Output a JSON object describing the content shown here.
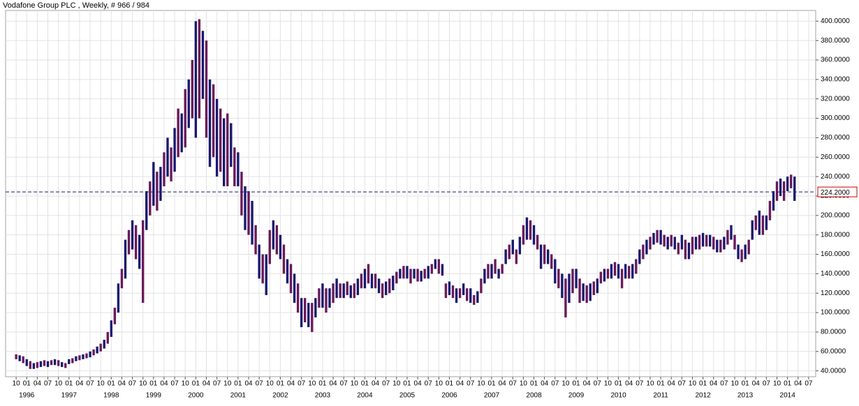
{
  "chart_data": {
    "type": "ohlc",
    "title": "Vodafone Group PLC , Weekly, # 966 / 984",
    "color": "#1a1a70",
    "grid": true,
    "x": [
      "1995-10",
      "1995-11",
      "1995-12",
      "1996-01",
      "1996-02",
      "1996-03",
      "1996-04",
      "1996-05",
      "1996-06",
      "1996-07",
      "1996-08",
      "1996-09",
      "1996-10",
      "1996-11",
      "1996-12",
      "1997-01",
      "1997-02",
      "1997-03",
      "1997-04",
      "1997-05",
      "1997-06",
      "1997-07",
      "1997-08",
      "1997-09",
      "1997-10",
      "1997-11",
      "1997-12",
      "1998-01",
      "1998-02",
      "1998-03",
      "1998-04",
      "1998-05",
      "1998-06",
      "1998-07",
      "1998-08",
      "1998-09",
      "1998-10",
      "1998-11",
      "1998-12",
      "1999-01",
      "1999-02",
      "1999-03",
      "1999-04",
      "1999-05",
      "1999-06",
      "1999-07",
      "1999-08",
      "1999-09",
      "1999-10",
      "1999-11",
      "1999-12",
      "2000-01",
      "2000-02",
      "2000-03",
      "2000-04",
      "2000-05",
      "2000-06",
      "2000-07",
      "2000-08",
      "2000-09",
      "2000-10",
      "2000-11",
      "2000-12",
      "2001-01",
      "2001-02",
      "2001-03",
      "2001-04",
      "2001-05",
      "2001-06",
      "2001-07",
      "2001-08",
      "2001-09",
      "2001-10",
      "2001-11",
      "2001-12",
      "2002-01",
      "2002-02",
      "2002-03",
      "2002-04",
      "2002-05",
      "2002-06",
      "2002-07",
      "2002-08",
      "2002-09",
      "2002-10",
      "2002-11",
      "2002-12",
      "2003-01",
      "2003-02",
      "2003-03",
      "2003-04",
      "2003-05",
      "2003-06",
      "2003-07",
      "2003-08",
      "2003-09",
      "2003-10",
      "2003-11",
      "2003-12",
      "2004-01",
      "2004-02",
      "2004-03",
      "2004-04",
      "2004-05",
      "2004-06",
      "2004-07",
      "2004-08",
      "2004-09",
      "2004-10",
      "2004-11",
      "2004-12",
      "2005-01",
      "2005-02",
      "2005-03",
      "2005-04",
      "2005-05",
      "2005-06",
      "2005-07",
      "2005-08",
      "2005-09",
      "2005-10",
      "2005-11",
      "2005-12",
      "2006-01",
      "2006-02",
      "2006-03",
      "2006-04",
      "2006-05",
      "2006-06",
      "2006-07",
      "2006-08",
      "2006-09",
      "2006-10",
      "2006-11",
      "2006-12",
      "2007-01",
      "2007-02",
      "2007-03",
      "2007-04",
      "2007-05",
      "2007-06",
      "2007-07",
      "2007-08",
      "2007-09",
      "2007-10",
      "2007-11",
      "2007-12",
      "2008-01",
      "2008-02",
      "2008-03",
      "2008-04",
      "2008-05",
      "2008-06",
      "2008-07",
      "2008-08",
      "2008-09",
      "2008-10",
      "2008-11",
      "2008-12",
      "2009-01",
      "2009-02",
      "2009-03",
      "2009-04",
      "2009-05",
      "2009-06",
      "2009-07",
      "2009-08",
      "2009-09",
      "2009-10",
      "2009-11",
      "2009-12",
      "2010-01",
      "2010-02",
      "2010-03",
      "2010-04",
      "2010-05",
      "2010-06",
      "2010-07",
      "2010-08",
      "2010-09",
      "2010-10",
      "2010-11",
      "2010-12",
      "2011-01",
      "2011-02",
      "2011-03",
      "2011-04",
      "2011-05",
      "2011-06",
      "2011-07",
      "2011-08",
      "2011-09",
      "2011-10",
      "2011-11",
      "2011-12",
      "2012-01",
      "2012-02",
      "2012-03",
      "2012-04",
      "2012-05",
      "2012-06",
      "2012-07",
      "2012-08",
      "2012-09",
      "2012-10",
      "2012-11",
      "2012-12",
      "2013-01",
      "2013-02",
      "2013-03",
      "2013-04",
      "2013-05",
      "2013-06",
      "2013-07",
      "2013-08",
      "2013-09",
      "2013-10",
      "2013-11",
      "2013-12",
      "2014-01",
      "2014-02",
      "2014-03"
    ],
    "low": [
      52,
      50,
      48,
      45,
      42,
      42,
      43,
      44,
      45,
      44,
      46,
      46,
      45,
      44,
      43,
      47,
      48,
      50,
      51,
      52,
      53,
      54,
      56,
      58,
      60,
      63,
      68,
      75,
      88,
      100,
      125,
      135,
      160,
      165,
      155,
      145,
      110,
      185,
      200,
      210,
      205,
      215,
      230,
      240,
      235,
      245,
      260,
      265,
      270,
      290,
      300,
      280,
      300,
      320,
      280,
      250,
      260,
      240,
      245,
      230,
      230,
      250,
      230,
      230,
      200,
      185,
      180,
      170,
      160,
      135,
      130,
      118,
      150,
      165,
      160,
      155,
      140,
      130,
      120,
      110,
      100,
      85,
      90,
      85,
      80,
      95,
      105,
      105,
      100,
      105,
      110,
      115,
      115,
      115,
      118,
      115,
      115,
      118,
      125,
      125,
      130,
      125,
      125,
      120,
      115,
      118,
      120,
      123,
      130,
      135,
      135,
      135,
      130,
      135,
      132,
      132,
      135,
      135,
      140,
      145,
      140,
      138,
      115,
      118,
      115,
      110,
      115,
      118,
      112,
      110,
      108,
      110,
      120,
      130,
      135,
      135,
      140,
      135,
      140,
      150,
      155,
      160,
      150,
      160,
      170,
      175,
      175,
      170,
      165,
      145,
      150,
      150,
      145,
      130,
      125,
      115,
      95,
      110,
      120,
      125,
      110,
      112,
      110,
      112,
      118,
      120,
      130,
      132,
      135,
      135,
      138,
      135,
      125,
      135,
      135,
      135,
      140,
      150,
      155,
      160,
      165,
      170,
      172,
      170,
      168,
      165,
      168,
      165,
      160,
      165,
      155,
      155,
      160,
      165,
      165,
      168,
      168,
      168,
      165,
      162,
      162,
      165,
      170,
      175,
      165,
      155,
      152,
      155,
      160,
      175,
      185,
      180,
      180,
      185,
      195,
      205,
      215,
      220,
      215,
      225,
      228,
      215
    ],
    "high": [
      57,
      56,
      55,
      52,
      50,
      48,
      49,
      50,
      51,
      50,
      51,
      52,
      51,
      49,
      48,
      52,
      53,
      55,
      56,
      57,
      58,
      60,
      62,
      65,
      68,
      72,
      80,
      92,
      105,
      130,
      145,
      175,
      185,
      195,
      190,
      180,
      195,
      225,
      235,
      255,
      245,
      250,
      265,
      280,
      270,
      290,
      310,
      305,
      330,
      340,
      360,
      400,
      402,
      390,
      380,
      340,
      335,
      320,
      310,
      300,
      305,
      295,
      270,
      265,
      245,
      230,
      225,
      215,
      190,
      170,
      160,
      160,
      185,
      195,
      190,
      180,
      170,
      155,
      150,
      140,
      130,
      115,
      115,
      110,
      110,
      115,
      125,
      130,
      125,
      125,
      130,
      135,
      130,
      130,
      132,
      128,
      130,
      135,
      140,
      145,
      150,
      140,
      140,
      135,
      130,
      132,
      135,
      138,
      142,
      145,
      148,
      148,
      145,
      145,
      145,
      143,
      145,
      148,
      150,
      155,
      155,
      150,
      130,
      132,
      128,
      125,
      125,
      130,
      125,
      125,
      118,
      122,
      135,
      145,
      150,
      150,
      155,
      145,
      150,
      165,
      170,
      175,
      165,
      178,
      190,
      198,
      195,
      190,
      180,
      170,
      170,
      165,
      160,
      155,
      145,
      140,
      135,
      140,
      145,
      145,
      135,
      130,
      128,
      130,
      132,
      135,
      142,
      145,
      145,
      150,
      152,
      150,
      145,
      150,
      148,
      150,
      155,
      165,
      170,
      175,
      178,
      182,
      185,
      185,
      180,
      178,
      180,
      178,
      172,
      180,
      175,
      172,
      178,
      178,
      180,
      182,
      180,
      180,
      178,
      175,
      175,
      178,
      185,
      190,
      180,
      170,
      165,
      170,
      175,
      195,
      200,
      205,
      200,
      200,
      215,
      225,
      235,
      238,
      235,
      240,
      242,
      240
    ],
    "xlim": [
      "1995-07",
      "2014-09"
    ],
    "ylim": [
      34,
      411
    ],
    "xticks": [
      {
        "value": "1995-10",
        "label": "10"
      },
      {
        "value": "1996-01",
        "label": "01"
      },
      {
        "value": "1996-04",
        "label": "04"
      },
      {
        "value": "1996-07",
        "label": "07"
      },
      {
        "value": "1996-10",
        "label": "10"
      },
      {
        "value": "1997-01",
        "label": "01"
      },
      {
        "value": "1997-04",
        "label": "04"
      },
      {
        "value": "1997-07",
        "label": "07"
      },
      {
        "value": "1997-10",
        "label": "10"
      },
      {
        "value": "1998-01",
        "label": "01"
      },
      {
        "value": "1998-04",
        "label": "04"
      },
      {
        "value": "1998-07",
        "label": "07"
      },
      {
        "value": "1998-10",
        "label": "10"
      },
      {
        "value": "1999-01",
        "label": "01"
      },
      {
        "value": "1999-04",
        "label": "04"
      },
      {
        "value": "1999-07",
        "label": "07"
      },
      {
        "value": "1999-10",
        "label": "10"
      },
      {
        "value": "2000-01",
        "label": "01"
      },
      {
        "value": "2000-04",
        "label": "04"
      },
      {
        "value": "2000-07",
        "label": "07"
      },
      {
        "value": "2000-10",
        "label": "10"
      },
      {
        "value": "2001-01",
        "label": "01"
      },
      {
        "value": "2001-04",
        "label": "04"
      },
      {
        "value": "2001-07",
        "label": "07"
      },
      {
        "value": "2001-10",
        "label": "10"
      },
      {
        "value": "2002-01",
        "label": "01"
      },
      {
        "value": "2002-04",
        "label": "04"
      },
      {
        "value": "2002-07",
        "label": "07"
      },
      {
        "value": "2002-10",
        "label": "10"
      },
      {
        "value": "2003-01",
        "label": "01"
      },
      {
        "value": "2003-04",
        "label": "04"
      },
      {
        "value": "2003-07",
        "label": "07"
      },
      {
        "value": "2003-10",
        "label": "10"
      },
      {
        "value": "2004-01",
        "label": "01"
      },
      {
        "value": "2004-04",
        "label": "04"
      },
      {
        "value": "2004-07",
        "label": "07"
      },
      {
        "value": "2004-10",
        "label": "10"
      },
      {
        "value": "2005-01",
        "label": "01"
      },
      {
        "value": "2005-04",
        "label": "04"
      },
      {
        "value": "2005-07",
        "label": "07"
      },
      {
        "value": "2005-10",
        "label": "10"
      },
      {
        "value": "2006-01",
        "label": "01"
      },
      {
        "value": "2006-04",
        "label": "04"
      },
      {
        "value": "2006-07",
        "label": "07"
      },
      {
        "value": "2006-10",
        "label": "10"
      },
      {
        "value": "2007-01",
        "label": "01"
      },
      {
        "value": "2007-04",
        "label": "04"
      },
      {
        "value": "2007-07",
        "label": "07"
      },
      {
        "value": "2007-10",
        "label": "10"
      },
      {
        "value": "2008-01",
        "label": "01"
      },
      {
        "value": "2008-04",
        "label": "04"
      },
      {
        "value": "2008-07",
        "label": "07"
      },
      {
        "value": "2008-10",
        "label": "10"
      },
      {
        "value": "2009-01",
        "label": "01"
      },
      {
        "value": "2009-04",
        "label": "04"
      },
      {
        "value": "2009-07",
        "label": "07"
      },
      {
        "value": "2009-10",
        "label": "10"
      },
      {
        "value": "2010-01",
        "label": "01"
      },
      {
        "value": "2010-04",
        "label": "04"
      },
      {
        "value": "2010-07",
        "label": "07"
      },
      {
        "value": "2010-10",
        "label": "10"
      },
      {
        "value": "2011-01",
        "label": "01"
      },
      {
        "value": "2011-04",
        "label": "04"
      },
      {
        "value": "2011-07",
        "label": "07"
      },
      {
        "value": "2011-10",
        "label": "10"
      },
      {
        "value": "2012-01",
        "label": "01"
      },
      {
        "value": "2012-04",
        "label": "04"
      },
      {
        "value": "2012-07",
        "label": "07"
      },
      {
        "value": "2012-10",
        "label": "10"
      },
      {
        "value": "2013-01",
        "label": "01"
      },
      {
        "value": "2013-04",
        "label": "04"
      },
      {
        "value": "2013-07",
        "label": "07"
      },
      {
        "value": "2013-10",
        "label": "10"
      },
      {
        "value": "2014-01",
        "label": "01"
      },
      {
        "value": "2014-04",
        "label": "04"
      },
      {
        "value": "2014-07",
        "label": "07"
      }
    ],
    "year_ticks": [
      {
        "value": "1996-01",
        "label": "1996"
      },
      {
        "value": "1997-01",
        "label": "1997"
      },
      {
        "value": "1998-01",
        "label": "1998"
      },
      {
        "value": "1999-01",
        "label": "1999"
      },
      {
        "value": "2000-01",
        "label": "2000"
      },
      {
        "value": "2001-01",
        "label": "2001"
      },
      {
        "value": "2002-01",
        "label": "2002"
      },
      {
        "value": "2003-01",
        "label": "2003"
      },
      {
        "value": "2004-01",
        "label": "2004"
      },
      {
        "value": "2005-01",
        "label": "2005"
      },
      {
        "value": "2006-01",
        "label": "2006"
      },
      {
        "value": "2007-01",
        "label": "2007"
      },
      {
        "value": "2008-01",
        "label": "2008"
      },
      {
        "value": "2009-01",
        "label": "2009"
      },
      {
        "value": "2010-01",
        "label": "2010"
      },
      {
        "value": "2011-01",
        "label": "2011"
      },
      {
        "value": "2012-01",
        "label": "2012"
      },
      {
        "value": "2013-01",
        "label": "2013"
      },
      {
        "value": "2014-01",
        "label": "2014"
      }
    ],
    "yticks": [
      {
        "value": 40,
        "label": "40.0000"
      },
      {
        "value": 60,
        "label": "60.0000"
      },
      {
        "value": 80,
        "label": "80.0000"
      },
      {
        "value": 100,
        "label": "100.0000"
      },
      {
        "value": 120,
        "label": "120.0000"
      },
      {
        "value": 140,
        "label": "140.0000"
      },
      {
        "value": 160,
        "label": "160.0000"
      },
      {
        "value": 180,
        "label": "180.0000"
      },
      {
        "value": 200,
        "label": "200.0000"
      },
      {
        "value": 220,
        "label": "220.0000"
      },
      {
        "value": 240,
        "label": "240.0000"
      },
      {
        "value": 260,
        "label": "260.0000"
      },
      {
        "value": 280,
        "label": "280.0000"
      },
      {
        "value": 300,
        "label": "300.0000"
      },
      {
        "value": 320,
        "label": "320.0000"
      },
      {
        "value": 340,
        "label": "340.0000"
      },
      {
        "value": 360,
        "label": "360.0000"
      },
      {
        "value": 380,
        "label": "380.0000"
      },
      {
        "value": 400,
        "label": "400.0000"
      }
    ],
    "last_price": {
      "value": 224.2,
      "label": "224.2000",
      "color": "#cc0000"
    }
  }
}
